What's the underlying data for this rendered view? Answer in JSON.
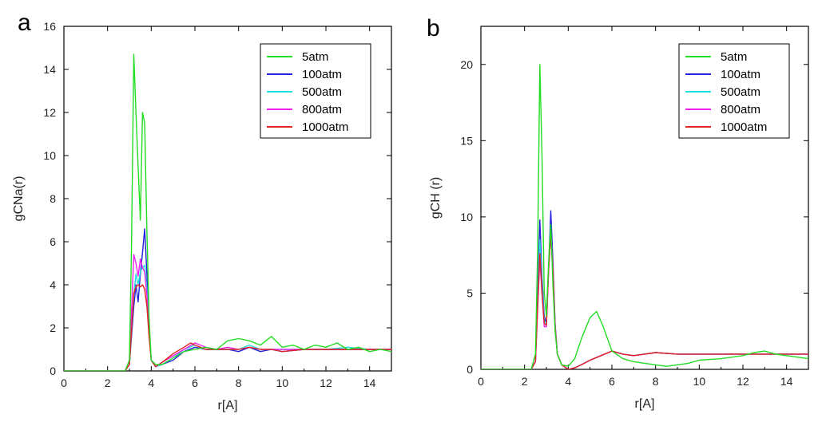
{
  "colors": {
    "5atm": "#22dd22",
    "100atm": "#2222dd",
    "500atm": "#22dddd",
    "800atm": "#ee22ee",
    "1000atm": "#e02222"
  },
  "chart_data": [
    {
      "type": "line",
      "panel_label": "a",
      "xlabel": "r[A]",
      "ylabel": "gCNa(r)",
      "xlim": [
        0,
        15
      ],
      "ylim": [
        0,
        16
      ],
      "xticks": [
        0,
        2,
        4,
        6,
        8,
        10,
        12,
        14
      ],
      "yticks": [
        0,
        2,
        4,
        6,
        8,
        10,
        12,
        14,
        16
      ],
      "legend_position": "top-right",
      "series": [
        {
          "name": "5atm",
          "x": [
            0,
            2.8,
            3.0,
            3.1,
            3.2,
            3.3,
            3.4,
            3.5,
            3.6,
            3.7,
            3.8,
            3.9,
            4.0,
            4.2,
            4.5,
            5.0,
            5.5,
            6.0,
            6.5,
            7.0,
            7.5,
            8.0,
            8.5,
            9.0,
            9.5,
            10.0,
            10.5,
            11.0,
            11.5,
            12.0,
            12.5,
            13.0,
            13.5,
            14.0,
            14.5,
            15.0
          ],
          "y": [
            0,
            0,
            0.5,
            6.0,
            14.7,
            12.0,
            9.5,
            7.0,
            12.0,
            11.5,
            6.5,
            2.5,
            0.5,
            0.3,
            0.3,
            0.6,
            0.9,
            1.0,
            1.1,
            1.0,
            1.4,
            1.5,
            1.4,
            1.2,
            1.6,
            1.1,
            1.2,
            1.0,
            1.2,
            1.1,
            1.3,
            1.0,
            1.1,
            0.9,
            1.0,
            0.9
          ]
        },
        {
          "name": "100atm",
          "x": [
            0,
            2.8,
            3.0,
            3.2,
            3.3,
            3.4,
            3.5,
            3.6,
            3.7,
            3.8,
            3.9,
            4.0,
            4.2,
            4.5,
            5.0,
            5.5,
            6.0,
            6.5,
            7.0,
            7.5,
            8.0,
            8.5,
            9.0,
            9.5,
            10.0,
            11.0,
            12.0,
            13.0,
            14.0,
            15.0
          ],
          "y": [
            0,
            0,
            0.3,
            3.0,
            4.0,
            3.2,
            4.5,
            5.5,
            6.6,
            4.5,
            2.0,
            0.5,
            0.2,
            0.3,
            0.5,
            0.9,
            1.1,
            1.0,
            1.0,
            1.0,
            0.9,
            1.1,
            0.9,
            1.0,
            0.9,
            1.0,
            1.0,
            1.0,
            1.0,
            1.0
          ]
        },
        {
          "name": "500atm",
          "x": [
            0,
            2.8,
            3.0,
            3.2,
            3.3,
            3.4,
            3.5,
            3.6,
            3.7,
            3.8,
            3.9,
            4.0,
            4.2,
            4.5,
            5.0,
            5.5,
            6.0,
            6.5,
            7.0,
            7.5,
            8.0,
            8.5,
            9.0,
            9.5,
            10.0,
            11.0,
            12.0,
            13.0,
            14.0,
            15.0
          ],
          "y": [
            0,
            0,
            0.3,
            3.5,
            4.5,
            4.0,
            4.6,
            4.8,
            4.9,
            3.8,
            2.0,
            0.5,
            0.2,
            0.3,
            0.6,
            1.0,
            1.2,
            1.0,
            1.0,
            1.0,
            1.0,
            1.2,
            1.0,
            1.0,
            1.0,
            1.0,
            1.0,
            1.1,
            1.0,
            1.0
          ]
        },
        {
          "name": "800atm",
          "x": [
            0,
            2.8,
            3.0,
            3.2,
            3.3,
            3.4,
            3.5,
            3.6,
            3.7,
            3.8,
            3.9,
            4.0,
            4.2,
            4.5,
            5.0,
            5.5,
            6.0,
            6.5,
            7.0,
            7.5,
            8.0,
            8.5,
            9.0,
            9.5,
            10.0,
            11.0,
            12.0,
            13.0,
            14.0,
            15.0
          ],
          "y": [
            0,
            0,
            0.3,
            5.4,
            5.0,
            4.4,
            5.2,
            4.8,
            4.6,
            3.5,
            1.8,
            0.5,
            0.2,
            0.4,
            0.7,
            1.0,
            1.3,
            1.1,
            1.0,
            1.1,
            1.0,
            1.1,
            1.0,
            1.0,
            1.0,
            1.0,
            1.0,
            1.0,
            1.0,
            1.0
          ]
        },
        {
          "name": "1000atm",
          "x": [
            0,
            2.8,
            3.0,
            3.2,
            3.3,
            3.4,
            3.5,
            3.6,
            3.7,
            3.8,
            3.9,
            4.0,
            4.2,
            4.5,
            5.0,
            5.5,
            5.8,
            6.0,
            6.5,
            7.0,
            7.5,
            8.0,
            8.5,
            9.0,
            9.5,
            10.0,
            11.0,
            12.0,
            13.0,
            14.0,
            15.0
          ],
          "y": [
            0,
            0,
            0.3,
            3.6,
            3.9,
            4.0,
            3.9,
            4.0,
            3.8,
            3.0,
            1.6,
            0.5,
            0.2,
            0.4,
            0.8,
            1.1,
            1.3,
            1.2,
            1.0,
            1.0,
            1.0,
            1.0,
            1.1,
            1.0,
            1.0,
            0.9,
            1.0,
            1.0,
            1.0,
            1.0,
            1.0
          ]
        }
      ]
    },
    {
      "type": "line",
      "panel_label": "b",
      "xlabel": "r[A]",
      "ylabel": "gCH (r)",
      "xlim": [
        0,
        15
      ],
      "ylim": [
        0,
        22.5
      ],
      "xticks": [
        0,
        2,
        4,
        6,
        8,
        10,
        12,
        14
      ],
      "yticks": [
        0,
        5,
        10,
        15,
        20
      ],
      "legend_position": "top-right",
      "series": [
        {
          "name": "5atm",
          "x": [
            0,
            2.3,
            2.5,
            2.6,
            2.7,
            2.8,
            2.9,
            3.0,
            3.1,
            3.2,
            3.3,
            3.4,
            3.5,
            3.7,
            4.0,
            4.3,
            4.6,
            5.0,
            5.3,
            5.6,
            6.0,
            6.5,
            7.0,
            7.5,
            8.0,
            8.5,
            9.0,
            9.5,
            10.0,
            11.0,
            12.0,
            12.5,
            13.0,
            13.5,
            14.0,
            14.5,
            15.0
          ],
          "y": [
            0,
            0,
            1.0,
            8.0,
            20.0,
            14.0,
            5.0,
            3.5,
            7.0,
            9.5,
            5.5,
            2.5,
            1.0,
            0.3,
            0.2,
            0.7,
            2.0,
            3.4,
            3.8,
            2.8,
            1.2,
            0.7,
            0.5,
            0.4,
            0.3,
            0.2,
            0.3,
            0.4,
            0.6,
            0.7,
            0.9,
            1.1,
            1.2,
            1.0,
            0.9,
            0.8,
            0.7
          ]
        },
        {
          "name": "100atm",
          "x": [
            0,
            2.3,
            2.5,
            2.6,
            2.7,
            2.8,
            2.9,
            3.0,
            3.1,
            3.2,
            3.3,
            3.4,
            3.5,
            3.7,
            4.0,
            4.3,
            4.6,
            5.0,
            5.5,
            6.0,
            6.5,
            7.0,
            7.5,
            8.0,
            9.0,
            10.0,
            11.0,
            12.0,
            13.0,
            14.0,
            15.0
          ],
          "y": [
            0,
            0,
            0.5,
            5.0,
            9.8,
            6.0,
            3.5,
            3.0,
            6.5,
            10.4,
            7.0,
            3.0,
            1.0,
            0.3,
            0.0,
            0.1,
            0.3,
            0.6,
            0.9,
            1.2,
            1.0,
            0.9,
            1.0,
            1.1,
            1.0,
            1.0,
            1.0,
            1.0,
            1.0,
            1.0,
            1.0
          ]
        },
        {
          "name": "500atm",
          "x": [
            0,
            2.3,
            2.5,
            2.6,
            2.7,
            2.8,
            2.9,
            3.0,
            3.1,
            3.2,
            3.3,
            3.4,
            3.5,
            3.7,
            4.0,
            4.3,
            4.6,
            5.0,
            5.5,
            6.0,
            6.5,
            7.0,
            7.5,
            8.0,
            9.0,
            10.0,
            11.0,
            12.0,
            13.0,
            14.0,
            15.0
          ],
          "y": [
            0,
            0,
            0.5,
            4.5,
            8.5,
            5.5,
            3.2,
            3.0,
            6.5,
            9.0,
            6.5,
            2.8,
            1.0,
            0.3,
            0.0,
            0.1,
            0.3,
            0.6,
            0.9,
            1.2,
            1.0,
            0.9,
            1.0,
            1.1,
            1.0,
            1.0,
            1.0,
            1.0,
            1.0,
            1.0,
            1.0
          ]
        },
        {
          "name": "800atm",
          "x": [
            0,
            2.3,
            2.5,
            2.6,
            2.7,
            2.8,
            2.9,
            3.0,
            3.1,
            3.2,
            3.3,
            3.4,
            3.5,
            3.7,
            4.0,
            4.3,
            4.6,
            5.0,
            5.5,
            6.0,
            6.5,
            7.0,
            7.5,
            8.0,
            9.0,
            10.0,
            11.0,
            12.0,
            13.0,
            14.0,
            15.0
          ],
          "y": [
            0,
            0,
            0.5,
            4.0,
            7.2,
            5.0,
            2.8,
            2.8,
            6.5,
            8.8,
            6.5,
            2.8,
            1.0,
            0.3,
            0.0,
            0.1,
            0.3,
            0.6,
            0.9,
            1.2,
            1.0,
            0.9,
            1.0,
            1.1,
            1.0,
            1.0,
            1.0,
            1.0,
            1.0,
            1.0,
            1.0
          ]
        },
        {
          "name": "1000atm",
          "x": [
            0,
            2.3,
            2.5,
            2.6,
            2.7,
            2.8,
            2.9,
            3.0,
            3.1,
            3.2,
            3.3,
            3.4,
            3.5,
            3.7,
            4.0,
            4.3,
            4.6,
            5.0,
            5.5,
            6.0,
            6.5,
            7.0,
            7.5,
            8.0,
            9.0,
            10.0,
            11.0,
            12.0,
            13.0,
            14.0,
            15.0
          ],
          "y": [
            0,
            0,
            0.5,
            4.2,
            7.6,
            5.0,
            3.0,
            2.9,
            6.5,
            8.9,
            6.5,
            2.8,
            1.0,
            0.3,
            0.0,
            0.1,
            0.3,
            0.6,
            0.9,
            1.2,
            1.0,
            0.9,
            1.0,
            1.1,
            1.0,
            1.0,
            1.0,
            1.0,
            1.0,
            1.0,
            1.0
          ]
        }
      ]
    }
  ]
}
